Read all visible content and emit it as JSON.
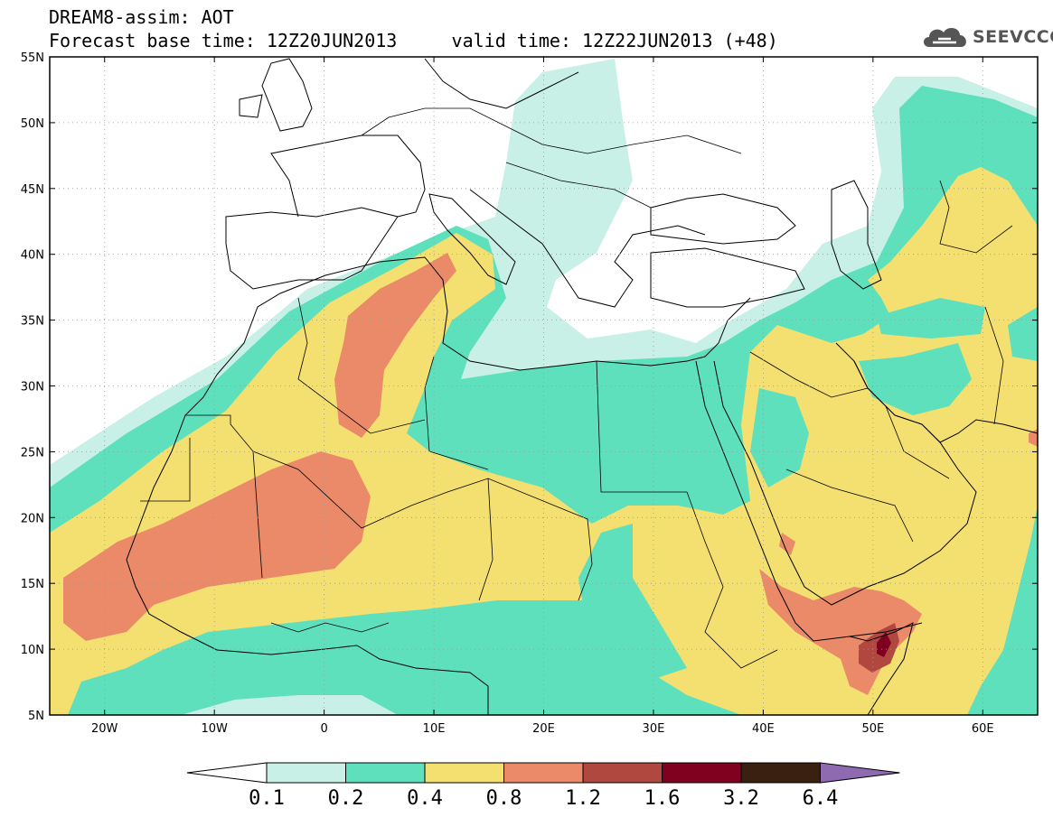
{
  "title": {
    "line1": "DREAM8-assim: AOT",
    "base": "Forecast base time: 12Z20JUN2013",
    "valid": "valid time: 12Z22JUN2013 (+48)"
  },
  "logo": {
    "text": "SEEVCCC",
    "icon": "cloud-icon"
  },
  "map_data": {
    "lon_range": [
      -25,
      65
    ],
    "lat_range": [
      5,
      55
    ],
    "lon_ticks": [
      {
        "value": -20,
        "label": "20W"
      },
      {
        "value": -10,
        "label": "10W"
      },
      {
        "value": 0,
        "label": "0"
      },
      {
        "value": 10,
        "label": "10E"
      },
      {
        "value": 20,
        "label": "20E"
      },
      {
        "value": 30,
        "label": "30E"
      },
      {
        "value": 40,
        "label": "40E"
      },
      {
        "value": 50,
        "label": "50E"
      },
      {
        "value": 60,
        "label": "60E"
      }
    ],
    "lat_ticks": [
      {
        "value": 5,
        "label": "5N"
      },
      {
        "value": 10,
        "label": "10N"
      },
      {
        "value": 15,
        "label": "15N"
      },
      {
        "value": 20,
        "label": "20N"
      },
      {
        "value": 25,
        "label": "25N"
      },
      {
        "value": 30,
        "label": "30N"
      },
      {
        "value": 35,
        "label": "35N"
      },
      {
        "value": 40,
        "label": "40N"
      },
      {
        "value": 45,
        "label": "45N"
      },
      {
        "value": 50,
        "label": "50N"
      },
      {
        "value": 55,
        "label": "55N"
      }
    ],
    "grid": "dotted"
  },
  "colorbar": {
    "labels": [
      "0.1",
      "0.2",
      "0.4",
      "0.8",
      "1.2",
      "1.6",
      "3.2",
      "6.4"
    ],
    "colors": [
      "#ffffff",
      "#c8f0e6",
      "#5ee0bc",
      "#f4e070",
      "#ea8a68",
      "#b04840",
      "#800020",
      "#3a2010",
      "#8e6ab0"
    ]
  },
  "colors": {
    "c1": "#c8f0e6",
    "c2": "#5ee0bc",
    "c3": "#f4e070",
    "c4": "#ea8a68",
    "c5": "#b04840",
    "c6": "#800020"
  }
}
